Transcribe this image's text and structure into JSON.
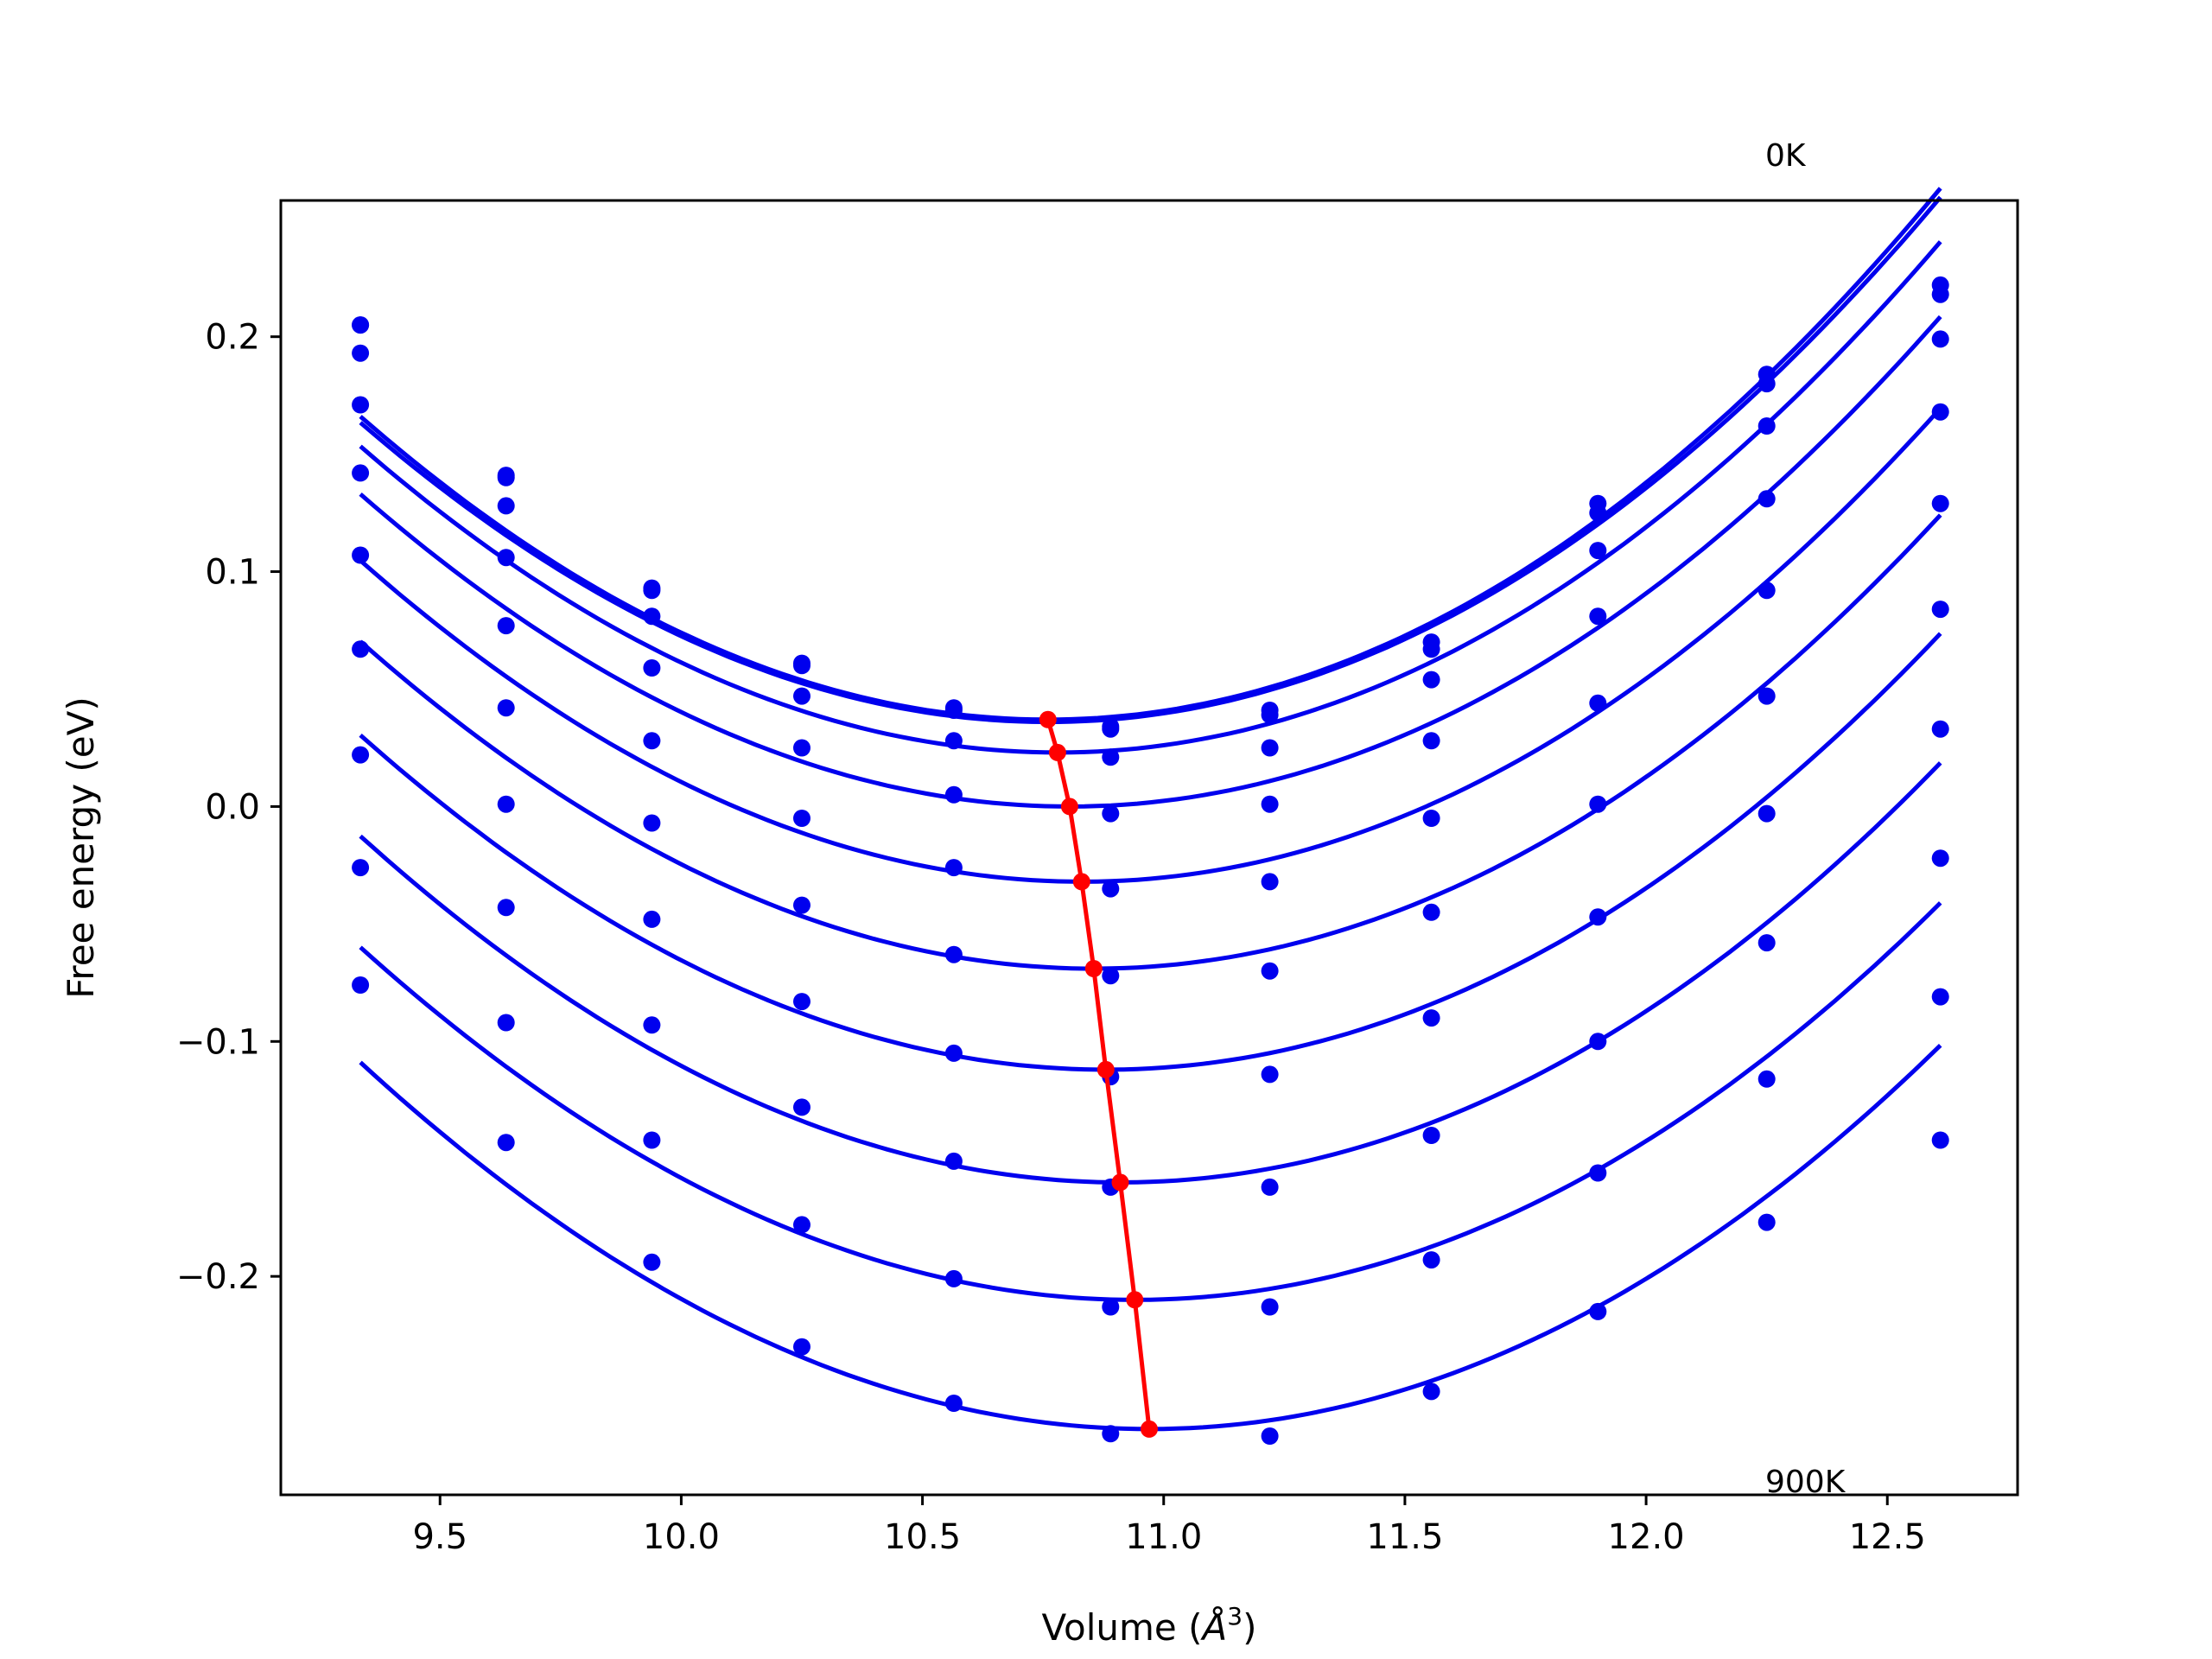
{
  "chart_data": {
    "type": "scatter",
    "xlabel": "Volume (",
    "xlabel_unit": "Å",
    "xlabel_exp": "3",
    "xlabel_close": ")",
    "ylabel": "Free energy (eV)",
    "xlim": [
      9.17,
      12.77
    ],
    "ylim": [
      -0.293,
      0.258
    ],
    "x_ticks": [
      9.5,
      10.0,
      10.5,
      11.0,
      11.5,
      12.0,
      12.5
    ],
    "x_tick_labels": [
      "9.5",
      "10.0",
      "10.5",
      "11.0",
      "11.5",
      "12.0",
      "12.5"
    ],
    "y_ticks": [
      -0.2,
      -0.1,
      0.0,
      0.1,
      0.2
    ],
    "y_tick_labels": [
      "−0.2",
      "−0.1",
      "0.0",
      "0.1",
      "0.2"
    ],
    "annotations": {
      "top": "0K",
      "bottom": "900K"
    },
    "colors": {
      "points": "#0000ee",
      "fits": "#0000ee",
      "minima": "#ff0000"
    },
    "x": [
      9.335,
      9.637,
      9.939,
      10.25,
      10.565,
      10.89,
      11.22,
      11.555,
      11.9,
      12.25,
      12.61
    ],
    "series": [
      {
        "values": [
          0.205,
          0.141,
          0.093,
          0.061,
          0.042,
          0.034,
          0.041,
          0.07,
          0.129,
          0.184,
          0.222
        ],
        "fit": {
          "vmin": 10.76,
          "emin": 0.037
        }
      },
      {
        "values": [
          0.205,
          0.14,
          0.092,
          0.06,
          0.041,
          0.033,
          0.039,
          0.067,
          0.125,
          0.18,
          0.218
        ],
        "fit": {
          "vmin": 10.76,
          "emin": 0.036
        }
      },
      {
        "values": [
          0.193,
          0.128,
          0.081,
          0.047,
          0.028,
          0.021,
          0.025,
          0.054,
          0.109,
          0.162,
          0.199
        ],
        "fit": {
          "vmin": 10.78,
          "emin": 0.023
        }
      },
      {
        "values": [
          0.171,
          0.106,
          0.059,
          0.025,
          0.005,
          -0.003,
          0.001,
          0.028,
          0.081,
          0.131,
          0.168
        ],
        "fit": {
          "vmin": 10.805,
          "emin": 0.0
        }
      },
      {
        "values": [
          0.142,
          0.077,
          0.028,
          -0.005,
          -0.026,
          -0.035,
          -0.032,
          -0.005,
          0.044,
          0.092,
          0.129
        ],
        "fit": {
          "vmin": 10.83,
          "emin": -0.032
        }
      },
      {
        "values": [
          0.107,
          0.042,
          -0.007,
          -0.042,
          -0.063,
          -0.072,
          -0.07,
          -0.045,
          0.001,
          0.047,
          0.084
        ],
        "fit": {
          "vmin": 10.855,
          "emin": -0.069
        }
      },
      {
        "values": [
          0.067,
          0.001,
          -0.048,
          -0.083,
          -0.105,
          -0.115,
          -0.114,
          -0.09,
          -0.047,
          -0.003,
          0.033
        ],
        "fit": {
          "vmin": 10.88,
          "emin": -0.112
        }
      },
      {
        "values": [
          0.022,
          -0.043,
          -0.093,
          -0.128,
          -0.151,
          -0.162,
          -0.162,
          -0.14,
          -0.1,
          -0.058,
          -0.022
        ],
        "fit": {
          "vmin": 10.91,
          "emin": -0.16
        }
      },
      {
        "values": [
          -0.026,
          -0.092,
          -0.142,
          -0.178,
          -0.201,
          -0.213,
          -0.213,
          -0.193,
          -0.156,
          -0.116,
          -0.081
        ],
        "fit": {
          "vmin": 10.94,
          "emin": -0.21
        }
      },
      {
        "values": [
          -0.076,
          -0.143,
          -0.194,
          -0.23,
          -0.254,
          -0.267,
          -0.268,
          -0.249,
          -0.215,
          -0.177,
          -0.142
        ],
        "fit": {
          "vmin": 10.97,
          "emin": -0.265
        }
      }
    ],
    "minima_line": {
      "x": [
        10.76,
        10.78,
        10.805,
        10.83,
        10.855,
        10.88,
        10.91,
        10.94,
        10.97
      ],
      "y": [
        0.037,
        0.023,
        0.0,
        -0.032,
        -0.069,
        -0.112,
        -0.16,
        -0.21,
        -0.265
      ]
    }
  }
}
